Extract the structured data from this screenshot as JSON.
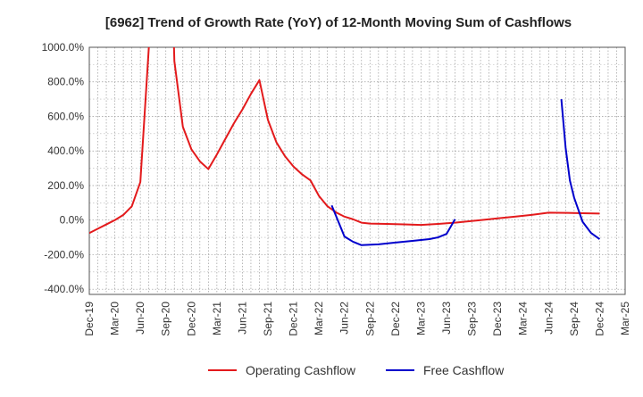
{
  "chart_data": {
    "type": "line",
    "title": "[6962]  Trend of Growth Rate (YoY) of 12-Month Moving Sum of Cashflows",
    "xlabel": "",
    "ylabel": "",
    "categories": [
      "Dec-19",
      "Mar-20",
      "Jun-20",
      "Sep-20",
      "Dec-20",
      "Mar-21",
      "Jun-21",
      "Sep-21",
      "Dec-21",
      "Mar-22",
      "Jun-22",
      "Sep-22",
      "Dec-22",
      "Mar-23",
      "Jun-23",
      "Sep-23",
      "Dec-23",
      "Mar-24",
      "Jun-24",
      "Sep-24",
      "Dec-24",
      "Mar-25"
    ],
    "y_ticks": [
      "1000.0%",
      "800.0%",
      "600.0%",
      "400.0%",
      "200.0%",
      "0.0%",
      "-200.0%",
      "-400.0%"
    ],
    "ylim": [
      -430,
      1000
    ],
    "grid": true,
    "legend_position": "bottom-center",
    "series": [
      {
        "name": "Operating Cashflow",
        "color": "#e31a1c",
        "values": [
          [
            0,
            -75
          ],
          [
            1,
            -50
          ],
          [
            2,
            -25
          ],
          [
            3,
            0
          ],
          [
            4,
            30
          ],
          [
            5,
            80
          ],
          [
            6,
            220
          ],
          [
            7,
            1000
          ],
          [
            7.15,
            1200
          ],
          [
            null,
            null
          ],
          [
            9.85,
            1200
          ],
          [
            10,
            920
          ],
          [
            11,
            540
          ],
          [
            12,
            410
          ],
          [
            13,
            340
          ],
          [
            14,
            295
          ],
          [
            15,
            380
          ],
          [
            16,
            470
          ],
          [
            17,
            560
          ],
          [
            18,
            640
          ],
          [
            19,
            730
          ],
          [
            20,
            810
          ],
          [
            21,
            580
          ],
          [
            22,
            450
          ],
          [
            23,
            370
          ],
          [
            24,
            310
          ],
          [
            25,
            265
          ],
          [
            26,
            230
          ],
          [
            27,
            140
          ],
          [
            28,
            80
          ],
          [
            29,
            45
          ],
          [
            30,
            20
          ],
          [
            31,
            5
          ],
          [
            32,
            -15
          ],
          [
            33,
            -20
          ],
          [
            35,
            -22
          ],
          [
            37,
            -25
          ],
          [
            39,
            -28
          ],
          [
            41,
            -22
          ],
          [
            43,
            -15
          ],
          [
            44,
            -10
          ],
          [
            46,
            0
          ],
          [
            48,
            10
          ],
          [
            50,
            20
          ],
          [
            52,
            30
          ],
          [
            54,
            43
          ],
          [
            56,
            42
          ],
          [
            58,
            40
          ],
          [
            60,
            38
          ]
        ]
      },
      {
        "name": "Free Cashflow",
        "color": "#0000cc",
        "values": [
          [
            28.5,
            85
          ],
          [
            30,
            -95
          ],
          [
            31,
            -125
          ],
          [
            32,
            -145
          ],
          [
            34,
            -140
          ],
          [
            36,
            -130
          ],
          [
            38,
            -120
          ],
          [
            40,
            -110
          ],
          [
            41,
            -100
          ],
          [
            42,
            -80
          ],
          [
            43,
            5
          ],
          [
            null,
            null
          ],
          [
            55.5,
            700
          ],
          [
            56,
            420
          ],
          [
            56.5,
            230
          ],
          [
            57,
            130
          ],
          [
            58,
            -10
          ],
          [
            59,
            -75
          ],
          [
            60,
            -110
          ]
        ]
      }
    ],
    "x_index_note": "x positions are in months from Dec-19 (0) to Mar-25 (63)"
  }
}
